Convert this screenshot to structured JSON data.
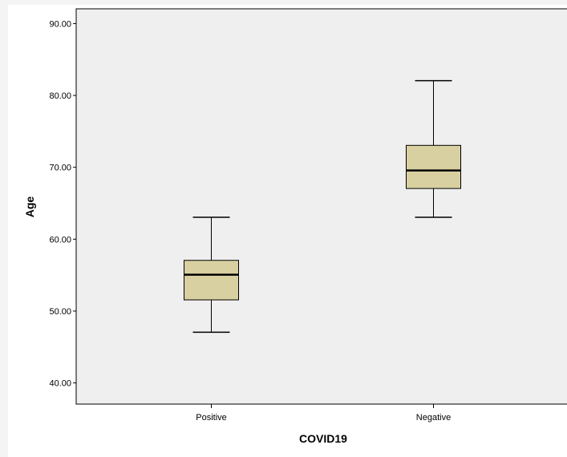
{
  "chart_data": {
    "type": "boxplot",
    "xlabel": "COVID19",
    "ylabel": "Age",
    "ylim": [
      37,
      92
    ],
    "yticks": [
      40,
      50,
      60,
      70,
      80,
      90
    ],
    "ytick_labels": [
      "40.00",
      "50.00",
      "60.00",
      "70.00",
      "80.00",
      "90.00"
    ],
    "categories": [
      "Positive",
      "Negative"
    ],
    "boxes": [
      {
        "category": "Positive",
        "min": 47,
        "q1": 51.5,
        "median": 55,
        "q3": 57,
        "max": 63
      },
      {
        "category": "Negative",
        "min": 63,
        "q1": 67,
        "median": 69.5,
        "q3": 73,
        "max": 82
      }
    ],
    "grid": false,
    "colors": {
      "plot_background": "#efefef",
      "box_fill": "#d8d0a0",
      "stroke": "#000000"
    }
  }
}
